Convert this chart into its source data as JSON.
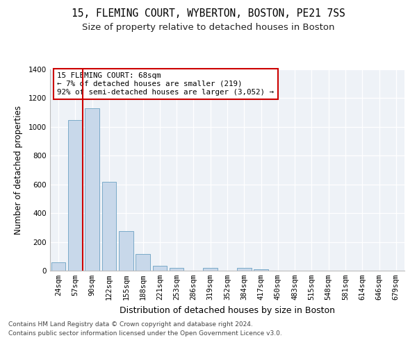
{
  "title1": "15, FLEMING COURT, WYBERTON, BOSTON, PE21 7SS",
  "title2": "Size of property relative to detached houses in Boston",
  "xlabel": "Distribution of detached houses by size in Boston",
  "ylabel": "Number of detached properties",
  "categories": [
    "24sqm",
    "57sqm",
    "90sqm",
    "122sqm",
    "155sqm",
    "188sqm",
    "221sqm",
    "253sqm",
    "286sqm",
    "319sqm",
    "352sqm",
    "384sqm",
    "417sqm",
    "450sqm",
    "483sqm",
    "515sqm",
    "548sqm",
    "581sqm",
    "614sqm",
    "646sqm",
    "679sqm"
  ],
  "values": [
    60,
    1050,
    1130,
    620,
    275,
    115,
    35,
    20,
    0,
    20,
    0,
    20,
    10,
    0,
    0,
    0,
    0,
    0,
    0,
    0,
    0
  ],
  "bar_color": "#c8d8ea",
  "bar_edge_color": "#7aaac8",
  "vline_x_index": 1,
  "vline_color": "#cc0000",
  "annotation_box_text": "15 FLEMING COURT: 68sqm\n← 7% of detached houses are smaller (219)\n92% of semi-detached houses are larger (3,052) →",
  "annotation_box_color": "#cc0000",
  "ylim": [
    0,
    1400
  ],
  "yticks": [
    0,
    200,
    400,
    600,
    800,
    1000,
    1200,
    1400
  ],
  "footnote1": "Contains HM Land Registry data © Crown copyright and database right 2024.",
  "footnote2": "Contains public sector information licensed under the Open Government Licence v3.0.",
  "bg_color": "#ffffff",
  "plot_bg_color": "#eef2f7",
  "grid_color": "#ffffff",
  "title1_fontsize": 10.5,
  "title2_fontsize": 9.5,
  "xlabel_fontsize": 9,
  "ylabel_fontsize": 8.5,
  "tick_fontsize": 7.5,
  "footnote_fontsize": 6.5
}
